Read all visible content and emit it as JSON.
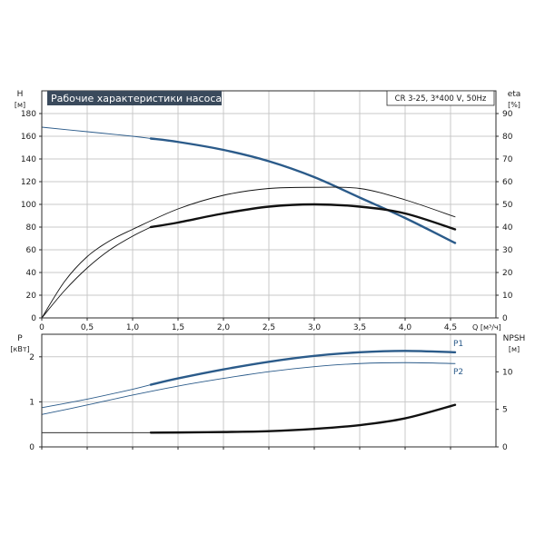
{
  "chart_data": [
    {
      "type": "line",
      "panel": "top",
      "title": "Рабочие характеристики насоса",
      "subtitle": "CR 3-25, 3*400 V, 50Hz",
      "xlabel": "Q [м³/ч]",
      "ylabel_left": "H",
      "ylabel_left_unit": "[м]",
      "ylabel_right": "eta",
      "ylabel_right_unit": "[%]",
      "xlim": [
        0,
        5
      ],
      "ylim_left": [
        0,
        200
      ],
      "ylim_right": [
        0,
        100
      ],
      "grid": true,
      "x_ticks": [
        "0",
        "0,5",
        "1,0",
        "1,5",
        "2,0",
        "2,5",
        "3,0",
        "3,5",
        "4,0",
        "4,5"
      ],
      "y_ticks_left": [
        "0",
        "20",
        "40",
        "60",
        "80",
        "100",
        "120",
        "140",
        "160",
        "180"
      ],
      "y_ticks_right": [
        "0",
        "10",
        "20",
        "30",
        "40",
        "50",
        "60",
        "70",
        "80",
        "90"
      ],
      "series": [
        {
          "axis": "left",
          "color": "#2b5b8a",
          "segments": [
            {
              "weight": "thin",
              "x": [
                0,
                0.5,
                1.0,
                1.2
              ],
              "y": [
                168,
                164,
                160,
                158
              ]
            },
            {
              "weight": "thick",
              "x": [
                1.2,
                1.5,
                2.0,
                2.5,
                3.0,
                3.5,
                4.0,
                4.55
              ],
              "y": [
                158,
                155,
                148,
                138,
                124,
                106,
                88,
                66
              ]
            }
          ]
        },
        {
          "axis": "right",
          "color": "#111111",
          "segments": [
            {
              "weight": "thin",
              "x": [
                0,
                0.25,
                0.5,
                0.75,
                1.0,
                1.5,
                2.0,
                2.5,
                3.0,
                3.5,
                4.0,
                4.55
              ],
              "y": [
                0,
                16,
                27,
                34,
                39,
                48,
                54,
                57,
                57.5,
                57,
                52,
                44.5
              ]
            }
          ]
        },
        {
          "axis": "right",
          "color": "#111111",
          "segments": [
            {
              "weight": "thin",
              "x": [
                0,
                0.25,
                0.5,
                0.75,
                1.0,
                1.2
              ],
              "y": [
                0,
                12,
                22,
                30,
                36,
                40
              ]
            },
            {
              "weight": "thick",
              "x": [
                1.2,
                1.5,
                2.0,
                2.5,
                3.0,
                3.5,
                4.0,
                4.55
              ],
              "y": [
                40,
                42,
                46,
                49,
                50,
                49,
                46,
                39
              ]
            }
          ]
        }
      ]
    },
    {
      "type": "line",
      "panel": "bottom",
      "ylabel_left": "P",
      "ylabel_left_unit": "[кВт]",
      "ylabel_right": "NPSH",
      "ylabel_right_unit": "[м]",
      "xlim": [
        0,
        5
      ],
      "ylim_left": [
        0,
        2.5
      ],
      "ylim_right": [
        0,
        15
      ],
      "grid": true,
      "y_ticks_left": [
        "0",
        "1",
        "2"
      ],
      "y_ticks_right": [
        "0",
        "5",
        "10"
      ],
      "series": [
        {
          "name": "P1",
          "axis": "left",
          "color": "#2b5b8a",
          "segments": [
            {
              "weight": "thin",
              "x": [
                0,
                0.5,
                1.0,
                1.2
              ],
              "y": [
                0.87,
                1.06,
                1.28,
                1.38
              ]
            },
            {
              "weight": "thick",
              "x": [
                1.2,
                1.5,
                2.0,
                2.5,
                3.0,
                3.5,
                4.0,
                4.55
              ],
              "y": [
                1.38,
                1.52,
                1.72,
                1.89,
                2.02,
                2.1,
                2.13,
                2.1
              ]
            }
          ]
        },
        {
          "name": "P2",
          "axis": "left",
          "color": "#2b5b8a",
          "segments": [
            {
              "weight": "thin",
              "x": [
                0,
                0.5,
                1.0,
                1.5,
                2.0,
                2.5,
                3.0,
                3.5,
                4.0,
                4.55
              ],
              "y": [
                0.72,
                0.93,
                1.15,
                1.35,
                1.52,
                1.67,
                1.78,
                1.85,
                1.87,
                1.85
              ]
            }
          ]
        },
        {
          "name": "",
          "axis": "right",
          "color": "#111111",
          "segments": [
            {
              "weight": "thin",
              "x": [
                0,
                0.5,
                1.0,
                1.2
              ],
              "y": [
                1.9,
                1.9,
                1.9,
                1.9
              ]
            },
            {
              "weight": "thick",
              "x": [
                1.2,
                1.5,
                2.0,
                2.5,
                3.0,
                3.5,
                4.0,
                4.55
              ],
              "y": [
                1.9,
                1.92,
                1.98,
                2.1,
                2.4,
                2.9,
                3.8,
                5.6
              ]
            }
          ]
        }
      ]
    }
  ]
}
